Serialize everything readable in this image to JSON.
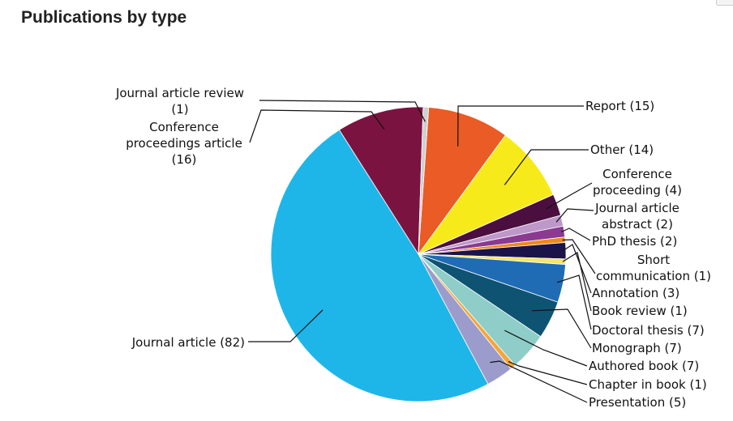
{
  "page": {
    "title": "Publications by type"
  },
  "chart_data": {
    "type": "pie",
    "title": "Publications by type",
    "legend": "none",
    "slices": [
      {
        "label": "Report (15)",
        "value": 15,
        "color": "#ea5b25"
      },
      {
        "label": "Other (14)",
        "value": 14,
        "color": "#f7ea1b"
      },
      {
        "label": "Conference proceeding (4)",
        "value": 4,
        "color": "#4b0f3f"
      },
      {
        "label": "Journal article abstract (2)",
        "value": 2,
        "color": "#bd98c9"
      },
      {
        "label": "PhD thesis (2)",
        "value": 2,
        "color": "#8a3a91"
      },
      {
        "label": "Short communication (1)",
        "value": 1,
        "color": "#ee8a1c"
      },
      {
        "label": "Annotation (3)",
        "value": 3,
        "color": "#1b1448"
      },
      {
        "label": "Book review (1)",
        "value": 1,
        "color": "#f5e66a"
      },
      {
        "label": "Doctoral thesis (7)",
        "value": 7,
        "color": "#1f6cb5"
      },
      {
        "label": "Monograph (7)",
        "value": 7,
        "color": "#0f5373"
      },
      {
        "label": "Authored book (7)",
        "value": 7,
        "color": "#8ecdc8"
      },
      {
        "label": "Chapter in book (1)",
        "value": 1,
        "color": "#f4a63a"
      },
      {
        "label": "Presentation (5)",
        "value": 5,
        "color": "#9b9ccc"
      },
      {
        "label": "Journal article (82)",
        "value": 82,
        "color": "#1eb6e8"
      },
      {
        "label": "Conference proceedings article (16)",
        "value": 16,
        "color": "#7b1340"
      },
      {
        "label": "Journal article review (1)",
        "value": 1,
        "color": "#d0d0d0"
      }
    ]
  }
}
